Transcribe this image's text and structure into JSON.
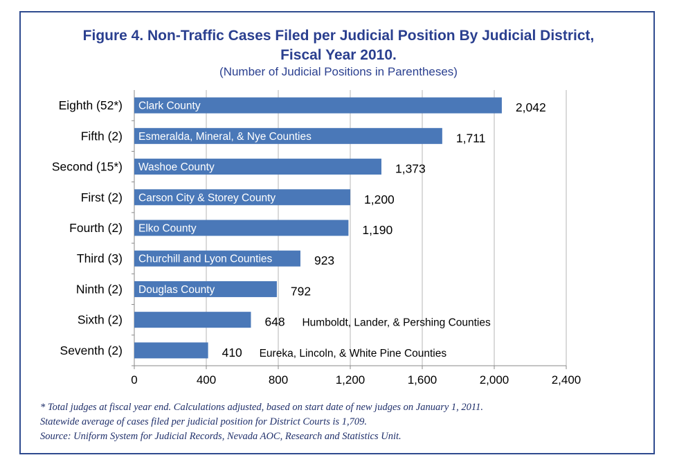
{
  "chart_data": {
    "type": "bar",
    "orientation": "horizontal",
    "title": "Figure 4. Non-Traffic Cases Filed per Judicial Position By Judicial District, Fiscal Year 2010.",
    "title_line1": "Figure 4. Non-Traffic Cases Filed per Judicial Position By Judicial District,",
    "title_line2": "Fiscal Year 2010.",
    "subtitle": "(Number of Judicial Positions in Parentheses)",
    "categories": [
      "Eighth (52*)",
      "Fifth (2)",
      "Second (15*)",
      "First (2)",
      "Fourth (2)",
      "Third (3)",
      "Ninth (2)",
      "Sixth (2)",
      "Seventh (2)"
    ],
    "values": [
      2042,
      1711,
      1373,
      1200,
      1190,
      923,
      792,
      648,
      410
    ],
    "value_labels": [
      "2,042",
      "1,711",
      "1,373",
      "1,200",
      "1,190",
      "923",
      "792",
      "648",
      "410"
    ],
    "bar_labels": [
      "Clark County",
      "Esmeralda, Mineral, & Nye Counties",
      "Washoe County",
      "Carson City & Storey County",
      "Elko County",
      "Churchill and Lyon Counties",
      "Douglas County",
      "",
      ""
    ],
    "outside_labels": [
      "",
      "",
      "",
      "",
      "",
      "",
      "",
      "Humboldt, Lander, & Pershing Counties",
      "Eureka, Lincoln, & White Pine Counties"
    ],
    "xlim": [
      0,
      2400
    ],
    "x_ticks": [
      0,
      400,
      800,
      1200,
      1600,
      2000,
      2400
    ],
    "x_tick_labels": [
      "0",
      "400",
      "800",
      "1,200",
      "1,600",
      "2,000",
      "2,400"
    ],
    "grid": "vertical",
    "bar_color": "#4a78b8",
    "xlabel": "",
    "ylabel": ""
  },
  "notes": {
    "line1": "* Total judges at fiscal year end. Calculations adjusted, based on start date of new judges on January 1, 2011.",
    "line2": "Statewide average of cases filed per judicial position for District Courts is 1,709.",
    "line3": "Source: Uniform System for Judicial Records, Nevada AOC, Research and Statistics Unit."
  },
  "colors": {
    "border": "#2e4a8e",
    "title": "#2a3f8f",
    "bar": "#4a78b8"
  }
}
